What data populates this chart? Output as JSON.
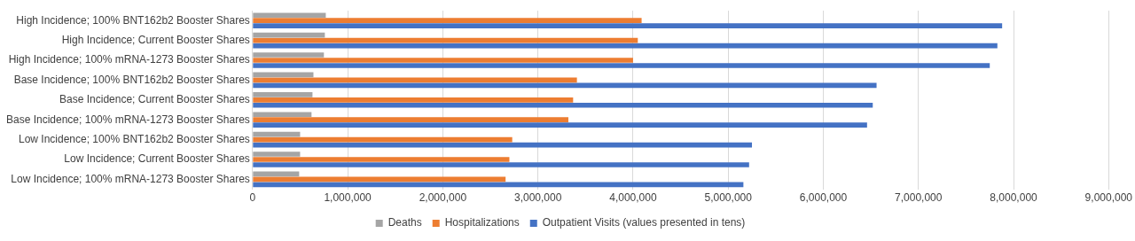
{
  "chart_data": {
    "type": "bar",
    "orientation": "horizontal",
    "categories": [
      "High Incidence; 100% BNT162b2 Booster Shares",
      "High Incidence; Current Booster Shares",
      "High Incidence; 100% mRNA-1273 Booster Shares",
      "Base Incidence; 100% BNT162b2 Booster Shares",
      "Base Incidence; Current Booster Shares",
      "Base Incidence; 100% mRNA-1273 Booster Shares",
      "Low Incidence; 100% BNT162b2 Booster Shares",
      "Low Incidence; Current Booster Shares",
      "Low Incidence; 100% mRNA-1273 Booster Shares"
    ],
    "series": [
      {
        "name": "Deaths",
        "color": "#a5a5a5",
        "values": [
          770000,
          760000,
          750000,
          640000,
          630000,
          620000,
          500000,
          500000,
          490000
        ]
      },
      {
        "name": "Hospitalizations",
        "color": "#ed7d31",
        "values": [
          4090000,
          4050000,
          4000000,
          3410000,
          3370000,
          3320000,
          2730000,
          2700000,
          2660000
        ]
      },
      {
        "name": "Outpatient Visits (values presented in tens)",
        "color": "#4472c4",
        "values": [
          7880000,
          7830000,
          7750000,
          6560000,
          6520000,
          6460000,
          5250000,
          5220000,
          5160000
        ]
      }
    ],
    "xlim": [
      0,
      9000000
    ],
    "xticks": [
      {
        "value": 0,
        "label": "0"
      },
      {
        "value": 1000000,
        "label": "1,000,000"
      },
      {
        "value": 2000000,
        "label": "2,000,000"
      },
      {
        "value": 3000000,
        "label": "3,000,000"
      },
      {
        "value": 4000000,
        "label": "4,000,000"
      },
      {
        "value": 5000000,
        "label": "5,000,000"
      },
      {
        "value": 6000000,
        "label": "6,000,000"
      },
      {
        "value": 7000000,
        "label": "7,000,000"
      },
      {
        "value": 8000000,
        "label": "8,000,000"
      },
      {
        "value": 9000000,
        "label": "9,000,000"
      }
    ],
    "grid": "x",
    "legend": "bottom"
  }
}
